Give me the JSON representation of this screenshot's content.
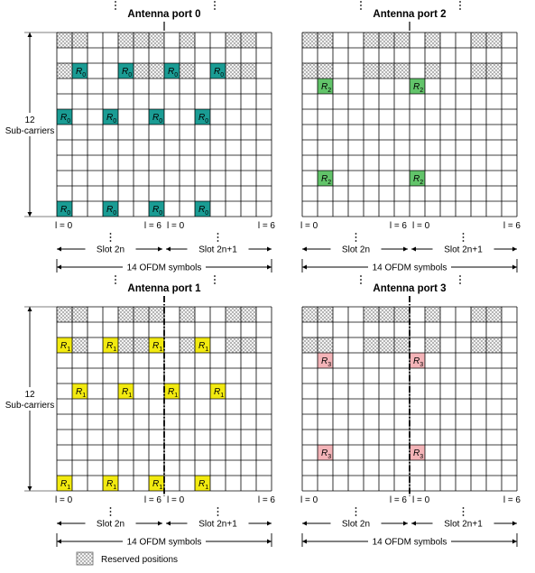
{
  "diagram": {
    "grid": {
      "symbols": 14,
      "subcarriers": 12
    },
    "colors": {
      "port0": "#1a9c94",
      "port1": "#f2ea10",
      "port2": "#62c46a",
      "port3": "#f4b4b8",
      "gridline": "#000000",
      "reserved_hatch": "#9a9a9a"
    },
    "labels": {
      "subcarriers_num": "12",
      "subcarriers_text": "Sub-carriers",
      "l0": "l = 0",
      "l6": "l = 6",
      "slot_a": "Slot 2n",
      "slot_b": "Slot 2n+1",
      "symbols": "14 OFDM symbols",
      "legend": "Reserved positions"
    },
    "panels": [
      {
        "id": "port0",
        "title": "Antenna port 0",
        "symbol": "R0",
        "mark_base": "R",
        "mark_sub": "0",
        "color_key": "port0",
        "refs": [
          [
            1,
            2
          ],
          [
            4,
            2
          ],
          [
            7,
            2
          ],
          [
            10,
            2
          ],
          [
            0,
            5
          ],
          [
            3,
            5
          ],
          [
            6,
            5
          ],
          [
            9,
            5
          ],
          [
            0,
            11
          ],
          [
            3,
            11
          ],
          [
            6,
            11
          ],
          [
            9,
            11
          ]
        ],
        "reserved": [
          [
            0,
            0
          ],
          [
            1,
            0
          ],
          [
            4,
            0
          ],
          [
            5,
            0
          ],
          [
            6,
            0
          ],
          [
            8,
            0
          ],
          [
            11,
            0
          ],
          [
            12,
            0
          ],
          [
            0,
            2
          ],
          [
            1,
            2
          ],
          [
            4,
            2
          ],
          [
            5,
            2
          ],
          [
            6,
            2
          ],
          [
            8,
            2
          ],
          [
            11,
            2
          ],
          [
            12,
            2
          ]
        ],
        "divider": "solid"
      },
      {
        "id": "port2",
        "title": "Antenna port 2",
        "symbol": "R2",
        "mark_base": "R",
        "mark_sub": "2",
        "color_key": "port2",
        "refs": [
          [
            1,
            3
          ],
          [
            7,
            3
          ],
          [
            1,
            9
          ],
          [
            7,
            9
          ]
        ],
        "reserved": [
          [
            0,
            0
          ],
          [
            1,
            0
          ],
          [
            4,
            0
          ],
          [
            5,
            0
          ],
          [
            6,
            0
          ],
          [
            8,
            0
          ],
          [
            11,
            0
          ],
          [
            12,
            0
          ],
          [
            0,
            2
          ],
          [
            1,
            2
          ],
          [
            4,
            2
          ],
          [
            5,
            2
          ],
          [
            6,
            2
          ],
          [
            8,
            2
          ],
          [
            11,
            2
          ],
          [
            12,
            2
          ]
        ],
        "divider": "solid"
      },
      {
        "id": "port1",
        "title": "Antenna port 1",
        "symbol": "R1",
        "mark_base": "R",
        "mark_sub": "1",
        "color_key": "port1",
        "refs": [
          [
            0,
            2
          ],
          [
            3,
            2
          ],
          [
            6,
            2
          ],
          [
            9,
            2
          ],
          [
            1,
            5
          ],
          [
            4,
            5
          ],
          [
            7,
            5
          ],
          [
            10,
            5
          ],
          [
            0,
            11
          ],
          [
            3,
            11
          ],
          [
            6,
            11
          ],
          [
            9,
            11
          ]
        ],
        "reserved": [
          [
            0,
            0
          ],
          [
            1,
            0
          ],
          [
            4,
            0
          ],
          [
            5,
            0
          ],
          [
            6,
            0
          ],
          [
            8,
            0
          ],
          [
            11,
            0
          ],
          [
            12,
            0
          ],
          [
            0,
            2
          ],
          [
            1,
            2
          ],
          [
            4,
            2
          ],
          [
            5,
            2
          ],
          [
            6,
            2
          ],
          [
            8,
            2
          ],
          [
            11,
            2
          ],
          [
            12,
            2
          ]
        ],
        "divider": "dashdot"
      },
      {
        "id": "port3",
        "title": "Antenna port 3",
        "symbol": "R3",
        "mark_base": "R",
        "mark_sub": "3",
        "color_key": "port3",
        "refs": [
          [
            1,
            3
          ],
          [
            7,
            3
          ],
          [
            1,
            9
          ],
          [
            7,
            9
          ]
        ],
        "reserved": [
          [
            0,
            0
          ],
          [
            1,
            0
          ],
          [
            4,
            0
          ],
          [
            5,
            0
          ],
          [
            6,
            0
          ],
          [
            8,
            0
          ],
          [
            11,
            0
          ],
          [
            12,
            0
          ],
          [
            0,
            2
          ],
          [
            1,
            2
          ],
          [
            4,
            2
          ],
          [
            5,
            2
          ],
          [
            6,
            2
          ],
          [
            8,
            2
          ],
          [
            11,
            2
          ],
          [
            12,
            2
          ]
        ],
        "divider": "dashdot"
      }
    ]
  }
}
